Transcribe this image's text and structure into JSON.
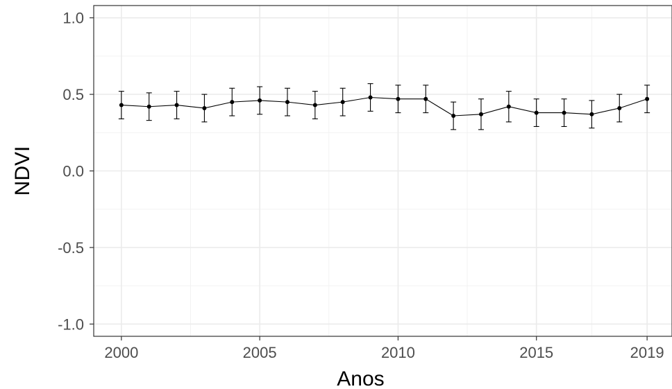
{
  "chart_data": {
    "type": "line",
    "title": "",
    "xlabel": "Anos",
    "ylabel": "NDVI",
    "xlim": [
      1999.0,
      2019.9
    ],
    "ylim": [
      -1.08,
      1.08
    ],
    "x_ticks": [
      2000,
      2005,
      2010,
      2015,
      2019
    ],
    "x_tick_labels": [
      "2000",
      "2005",
      "2010",
      "2015",
      "2019"
    ],
    "y_ticks": [
      -1.0,
      -0.5,
      0.0,
      0.5,
      1.0
    ],
    "y_tick_labels": [
      "-1.0",
      "-0.5",
      "0.0",
      "0.5",
      "1.0"
    ],
    "grid": true,
    "series": [
      {
        "x": [
          2000,
          2001,
          2002,
          2003,
          2004,
          2005,
          2006,
          2007,
          2008,
          2009,
          2010,
          2011,
          2012,
          2013,
          2014,
          2015,
          2016,
          2017,
          2018,
          2019
        ],
        "y": [
          0.43,
          0.42,
          0.43,
          0.41,
          0.45,
          0.46,
          0.45,
          0.43,
          0.45,
          0.48,
          0.47,
          0.47,
          0.36,
          0.37,
          0.42,
          0.38,
          0.38,
          0.37,
          0.41,
          0.47
        ],
        "error": [
          0.09,
          0.09,
          0.09,
          0.09,
          0.09,
          0.09,
          0.09,
          0.09,
          0.09,
          0.09,
          0.09,
          0.09,
          0.09,
          0.1,
          0.1,
          0.09,
          0.09,
          0.09,
          0.09,
          0.09
        ],
        "color": "#000000"
      }
    ]
  }
}
